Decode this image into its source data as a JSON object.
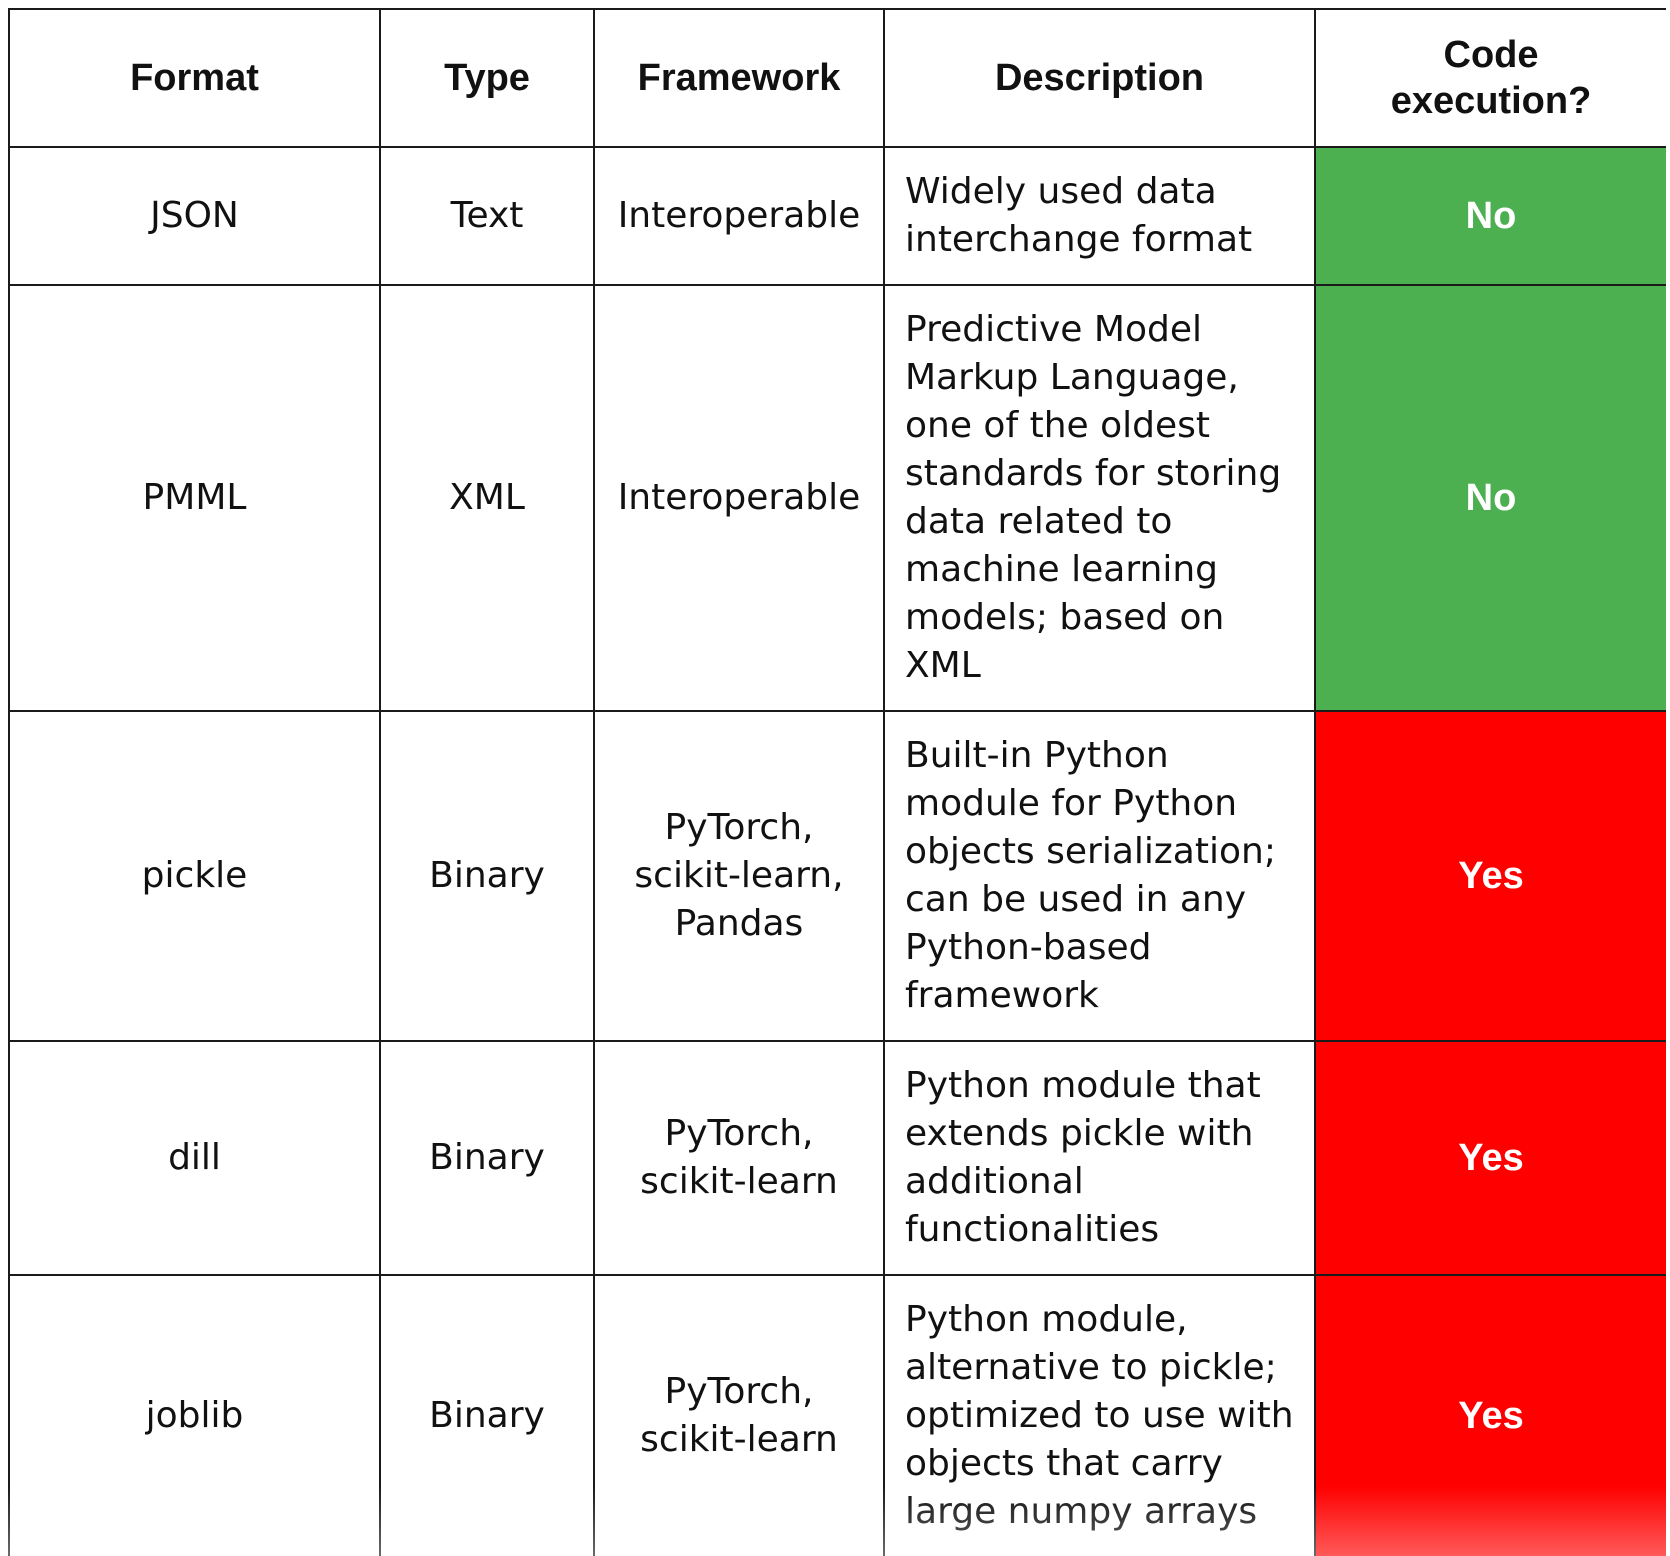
{
  "table": {
    "headers": {
      "format": "Format",
      "type": "Type",
      "framework": "Framework",
      "description": "Description",
      "code_execution": "Code execution?"
    },
    "rows": [
      {
        "format": "JSON",
        "type": "Text",
        "framework": "Interoperable",
        "description": "Widely used data interchange format",
        "code_execution": "No"
      },
      {
        "format": "PMML",
        "type": "XML",
        "framework": "Interoperable",
        "description": "Predictive Model Markup Language, one of the oldest standards for storing data related to machine learning models; based on XML",
        "code_execution": "No"
      },
      {
        "format": "pickle",
        "type": "Binary",
        "framework": "PyTorch, scikit-learn, Pandas",
        "description": "Built-in Python module for Python objects serialization; can be used in any Python-based framework",
        "code_execution": "Yes"
      },
      {
        "format": "dill",
        "type": "Binary",
        "framework": "PyTorch, scikit-learn",
        "description": "Python module that extends pickle with additional functionalities",
        "code_execution": "Yes"
      },
      {
        "format": "joblib",
        "type": "Binary",
        "framework": "PyTorch, scikit-learn",
        "description": "Python module, alternative to pickle; optimized to use with objects that carry large numpy arrays",
        "code_execution": "Yes"
      }
    ]
  },
  "colors": {
    "no": "#4caf50",
    "yes": "#ff0000",
    "border": "#1a1a1a",
    "exec_text": "#ffffff"
  }
}
